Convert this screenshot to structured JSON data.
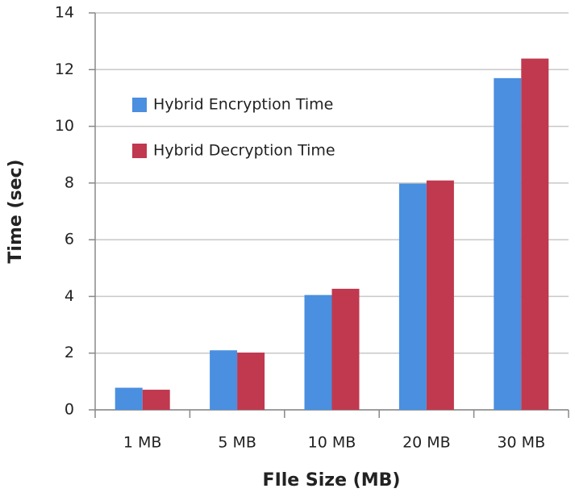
{
  "chart_data": {
    "type": "bar",
    "x_label": "FIle Size (MB)",
    "y_label": "Time (sec)",
    "categories": [
      "1 MB",
      "5 MB",
      "10 MB",
      "20 MB",
      "30 MB"
    ],
    "series": [
      {
        "name": "Hybrid Encryption Time",
        "color": "#4a8fe0",
        "values": [
          0.78,
          2.1,
          4.05,
          7.98,
          11.7
        ]
      },
      {
        "name": "Hybrid Decryption Time",
        "color": "#c0394f",
        "values": [
          0.71,
          2.02,
          4.27,
          8.09,
          12.39
        ]
      }
    ],
    "ylim": [
      0,
      14
    ],
    "yticks": [
      0,
      2,
      4,
      6,
      8,
      10,
      12,
      14
    ],
    "grid": true,
    "legend": "upper-left"
  }
}
